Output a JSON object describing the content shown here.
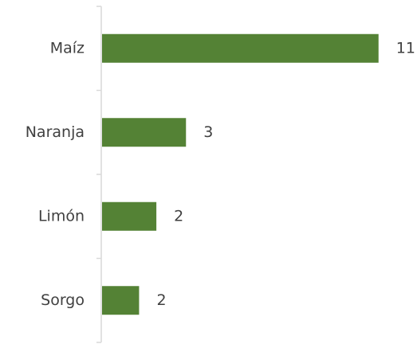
{
  "chart_data": {
    "type": "bar",
    "orientation": "horizontal",
    "categories": [
      "Maíz",
      "Naranja",
      "Limón",
      "Sorgo"
    ],
    "values": [
      11.2,
      3.4,
      2.2,
      1.5
    ],
    "value_labels": [
      "11",
      "3",
      "2",
      "2"
    ],
    "color": "#548235",
    "xlim": [
      0,
      12.5
    ]
  }
}
